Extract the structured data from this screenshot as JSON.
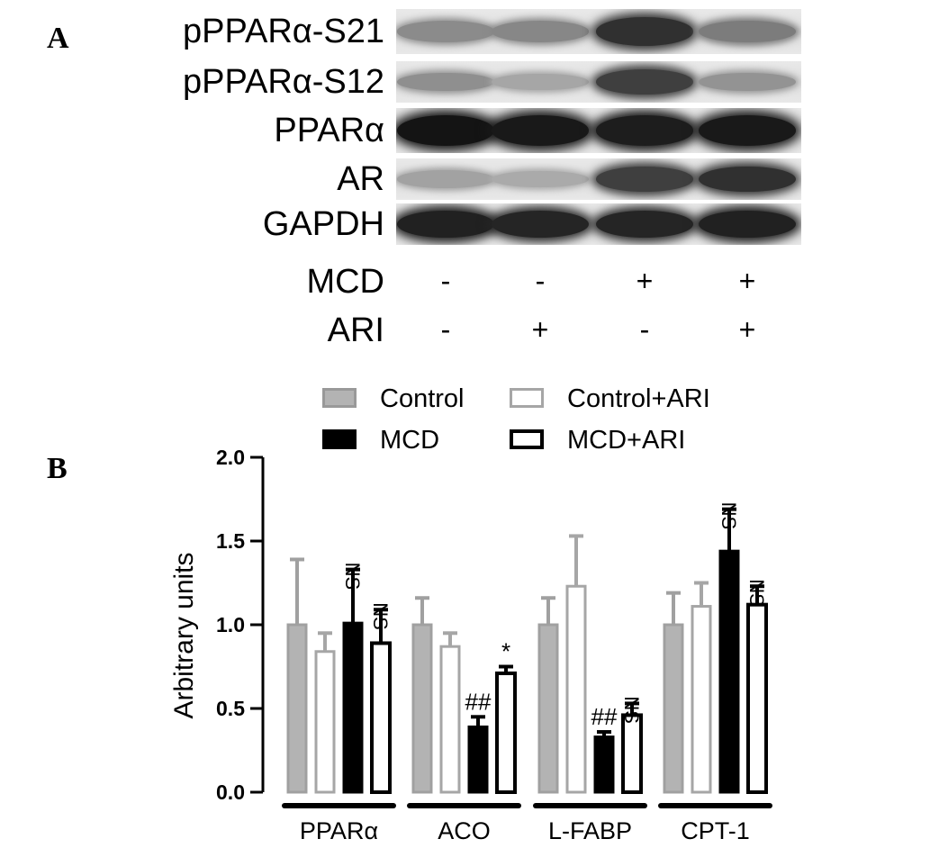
{
  "panel_a": {
    "letter": "A",
    "blots": [
      {
        "label": "pPPARα-S21",
        "intensity": [
          0.32,
          0.34,
          0.8,
          0.4
        ]
      },
      {
        "label": "pPPARα-S12",
        "intensity": [
          0.3,
          0.18,
          0.72,
          0.28
        ]
      },
      {
        "label": "PPARα",
        "intensity": [
          0.95,
          0.92,
          0.9,
          0.92
        ]
      },
      {
        "label": "AR",
        "intensity": [
          0.2,
          0.16,
          0.72,
          0.8
        ]
      },
      {
        "label": "GAPDH",
        "intensity": [
          0.88,
          0.86,
          0.86,
          0.88
        ]
      }
    ],
    "conditions": [
      {
        "label": "MCD",
        "signs": [
          "-",
          "-",
          "+",
          "+"
        ]
      },
      {
        "label": "ARI",
        "signs": [
          "-",
          "+",
          "-",
          "+"
        ]
      }
    ]
  },
  "panel_b": {
    "letter": "B",
    "legend": [
      {
        "label": "Control",
        "style": "gray-fill"
      },
      {
        "label": "Control+ARI",
        "style": "gray-outline"
      },
      {
        "label": "MCD",
        "style": "black-fill"
      },
      {
        "label": "MCD+ARI",
        "style": "black-outline"
      }
    ]
  },
  "colors": {
    "gray_fill": "#b3b3b3",
    "gray_outline": "#a6a6a6",
    "black": "#000000"
  },
  "chart_data": {
    "type": "bar",
    "ylabel": "Arbitrary units",
    "ylim": [
      0,
      2.0
    ],
    "yticks": [
      "0.0",
      "0.5",
      "1.0",
      "1.5",
      "2.0"
    ],
    "categories": [
      "PPARα",
      "ACO",
      "L-FABP",
      "CPT-1"
    ],
    "series": [
      {
        "name": "Control",
        "values": [
          1.0,
          1.0,
          1.0,
          1.0
        ],
        "errors": [
          0.39,
          0.16,
          0.16,
          0.19
        ]
      },
      {
        "name": "Control+ARI",
        "values": [
          0.84,
          0.87,
          1.23,
          1.11
        ],
        "errors": [
          0.11,
          0.08,
          0.3,
          0.14
        ]
      },
      {
        "name": "MCD",
        "values": [
          1.01,
          0.39,
          0.33,
          1.44
        ],
        "errors": [
          0.32,
          0.06,
          0.03,
          0.25
        ]
      },
      {
        "name": "MCD+ARI",
        "values": [
          0.89,
          0.71,
          0.46,
          1.12
        ],
        "errors": [
          0.2,
          0.04,
          0.07,
          0.11
        ]
      }
    ],
    "annotations": [
      {
        "category": "PPARα",
        "series": "MCD",
        "text": "NS",
        "rotated": true
      },
      {
        "category": "PPARα",
        "series": "MCD+ARI",
        "text": "NS",
        "rotated": true
      },
      {
        "category": "ACO",
        "series": "MCD",
        "text": "##",
        "rotated": false
      },
      {
        "category": "ACO",
        "series": "MCD+ARI",
        "text": "*",
        "rotated": false
      },
      {
        "category": "L-FABP",
        "series": "MCD",
        "text": "##",
        "rotated": false
      },
      {
        "category": "L-FABP",
        "series": "MCD+ARI",
        "text": "NS",
        "rotated": true
      },
      {
        "category": "CPT-1",
        "series": "MCD",
        "text": "NS",
        "rotated": true
      },
      {
        "category": "CPT-1",
        "series": "MCD+ARI",
        "text": "NS",
        "rotated": true
      }
    ]
  }
}
